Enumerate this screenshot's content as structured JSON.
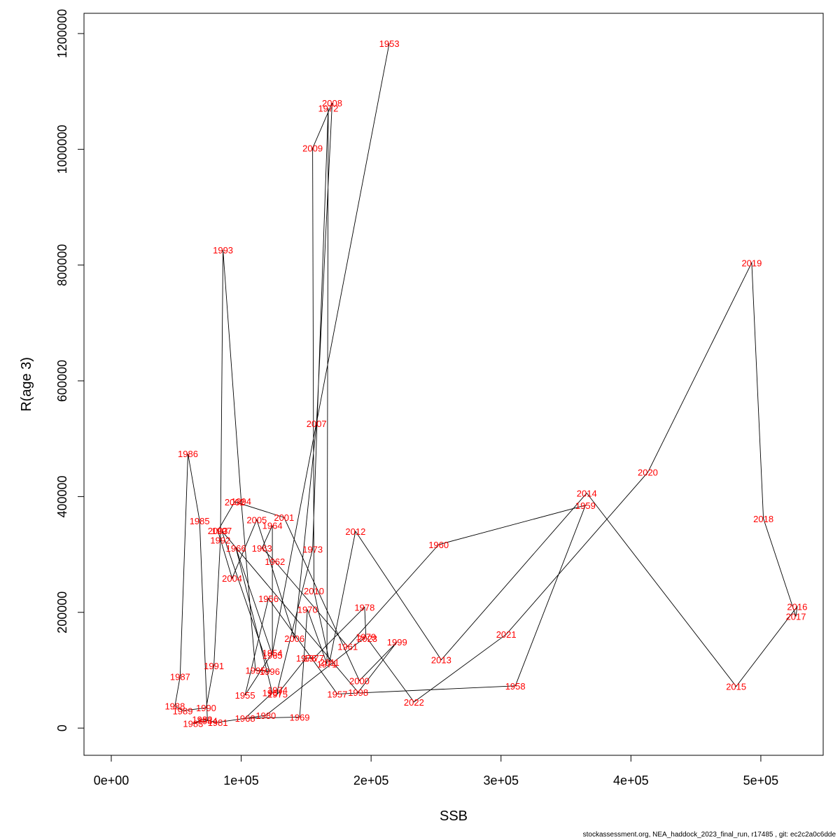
{
  "chart_data": {
    "type": "line",
    "xlabel": "SSB",
    "ylabel": "R(age 3)",
    "xlim": [
      -21000,
      548000
    ],
    "ylim": [
      -47000,
      1235000
    ],
    "x_ticks": [
      0,
      100000,
      200000,
      300000,
      400000,
      500000
    ],
    "x_tick_labels": [
      "0e+00",
      "1e+05",
      "2e+05",
      "3e+05",
      "4e+05",
      "5e+05"
    ],
    "y_ticks": [
      0,
      200000,
      400000,
      600000,
      800000,
      1000000,
      1200000
    ],
    "y_tick_labels": [
      "0",
      "200000",
      "400000",
      "600000",
      "800000",
      "1000000",
      "1200000"
    ],
    "points": [
      {
        "year": "1953",
        "x": 214000,
        "y": 1183000
      },
      {
        "year": "1954",
        "x": 124000,
        "y": 130000
      },
      {
        "year": "1955",
        "x": 103000,
        "y": 57000
      },
      {
        "year": "1956",
        "x": 121000,
        "y": 224000
      },
      {
        "year": "1957",
        "x": 174000,
        "y": 59000
      },
      {
        "year": "1958",
        "x": 311000,
        "y": 73000
      },
      {
        "year": "1959",
        "x": 365000,
        "y": 385000
      },
      {
        "year": "1960",
        "x": 252000,
        "y": 317000
      },
      {
        "year": "1961",
        "x": 182000,
        "y": 141000
      },
      {
        "year": "1962",
        "x": 126000,
        "y": 288000
      },
      {
        "year": "1963",
        "x": 116000,
        "y": 311000
      },
      {
        "year": "1964",
        "x": 124000,
        "y": 350000
      },
      {
        "year": "1965",
        "x": 124000,
        "y": 126000
      },
      {
        "year": "1966",
        "x": 96000,
        "y": 311000
      },
      {
        "year": "1967",
        "x": 124000,
        "y": 61000
      },
      {
        "year": "1968",
        "x": 103000,
        "y": 17000
      },
      {
        "year": "1969",
        "x": 145000,
        "y": 19000
      },
      {
        "year": "1970",
        "x": 151000,
        "y": 205000
      },
      {
        "year": "1971",
        "x": 166000,
        "y": 111000
      },
      {
        "year": "1972",
        "x": 167000,
        "y": 1071000
      },
      {
        "year": "1973",
        "x": 155000,
        "y": 309000
      },
      {
        "year": "1974",
        "x": 128000,
        "y": 66000
      },
      {
        "year": "1975",
        "x": 128000,
        "y": 59000
      },
      {
        "year": "1976",
        "x": 150000,
        "y": 121000
      },
      {
        "year": "1977",
        "x": 156000,
        "y": 121000
      },
      {
        "year": "1978",
        "x": 195000,
        "y": 209000
      },
      {
        "year": "1979",
        "x": 196000,
        "y": 158000
      },
      {
        "year": "1980",
        "x": 119000,
        "y": 22000
      },
      {
        "year": "1981",
        "x": 82000,
        "y": 10000
      },
      {
        "year": "1982",
        "x": 70000,
        "y": 15000
      },
      {
        "year": "1983",
        "x": 63000,
        "y": 8000
      },
      {
        "year": "1984",
        "x": 74000,
        "y": 13000
      },
      {
        "year": "1985",
        "x": 68000,
        "y": 358000
      },
      {
        "year": "1986",
        "x": 59000,
        "y": 474000
      },
      {
        "year": "1987",
        "x": 53000,
        "y": 89000
      },
      {
        "year": "1988",
        "x": 49000,
        "y": 38000
      },
      {
        "year": "1989",
        "x": 55000,
        "y": 30000
      },
      {
        "year": "1990",
        "x": 73000,
        "y": 35000
      },
      {
        "year": "1991",
        "x": 79000,
        "y": 108000
      },
      {
        "year": "1992",
        "x": 84000,
        "y": 325000
      },
      {
        "year": "1993",
        "x": 86000,
        "y": 826000
      },
      {
        "year": "1994",
        "x": 100000,
        "y": 392000
      },
      {
        "year": "1995",
        "x": 111000,
        "y": 100000
      },
      {
        "year": "1996",
        "x": 122000,
        "y": 98000
      },
      {
        "year": "1997",
        "x": 85000,
        "y": 341000
      },
      {
        "year": "1998",
        "x": 190000,
        "y": 62000
      },
      {
        "year": "1999",
        "x": 220000,
        "y": 149000
      },
      {
        "year": "2000",
        "x": 191000,
        "y": 82000
      },
      {
        "year": "2001",
        "x": 133000,
        "y": 364000
      },
      {
        "year": "2002",
        "x": 95000,
        "y": 391000
      },
      {
        "year": "2003",
        "x": 82000,
        "y": 341000
      },
      {
        "year": "2004",
        "x": 93000,
        "y": 259000
      },
      {
        "year": "2005",
        "x": 112000,
        "y": 360000
      },
      {
        "year": "2006",
        "x": 141000,
        "y": 155000
      },
      {
        "year": "2007",
        "x": 158000,
        "y": 526000
      },
      {
        "year": "2008",
        "x": 170000,
        "y": 1080000
      },
      {
        "year": "2009",
        "x": 155000,
        "y": 1002000
      },
      {
        "year": "2010",
        "x": 156000,
        "y": 237000
      },
      {
        "year": "2011",
        "x": 168000,
        "y": 114000
      },
      {
        "year": "2012",
        "x": 188000,
        "y": 340000
      },
      {
        "year": "2013",
        "x": 254000,
        "y": 118000
      },
      {
        "year": "2014",
        "x": 366000,
        "y": 406000
      },
      {
        "year": "2015",
        "x": 481000,
        "y": 72000
      },
      {
        "year": "2016",
        "x": 528000,
        "y": 210000
      },
      {
        "year": "2017",
        "x": 527000,
        "y": 193000
      },
      {
        "year": "2018",
        "x": 502000,
        "y": 362000
      },
      {
        "year": "2019",
        "x": 493000,
        "y": 804000
      },
      {
        "year": "2020",
        "x": 413000,
        "y": 442000
      },
      {
        "year": "2021",
        "x": 304000,
        "y": 162000
      },
      {
        "year": "2022",
        "x": 233000,
        "y": 45000
      },
      {
        "year": "2023",
        "x": 197000,
        "y": 155000
      }
    ]
  },
  "footer": "stockassessment.org, NEA_haddock_2023_final_run, r17485 , git: ec2c2a0c6dde"
}
